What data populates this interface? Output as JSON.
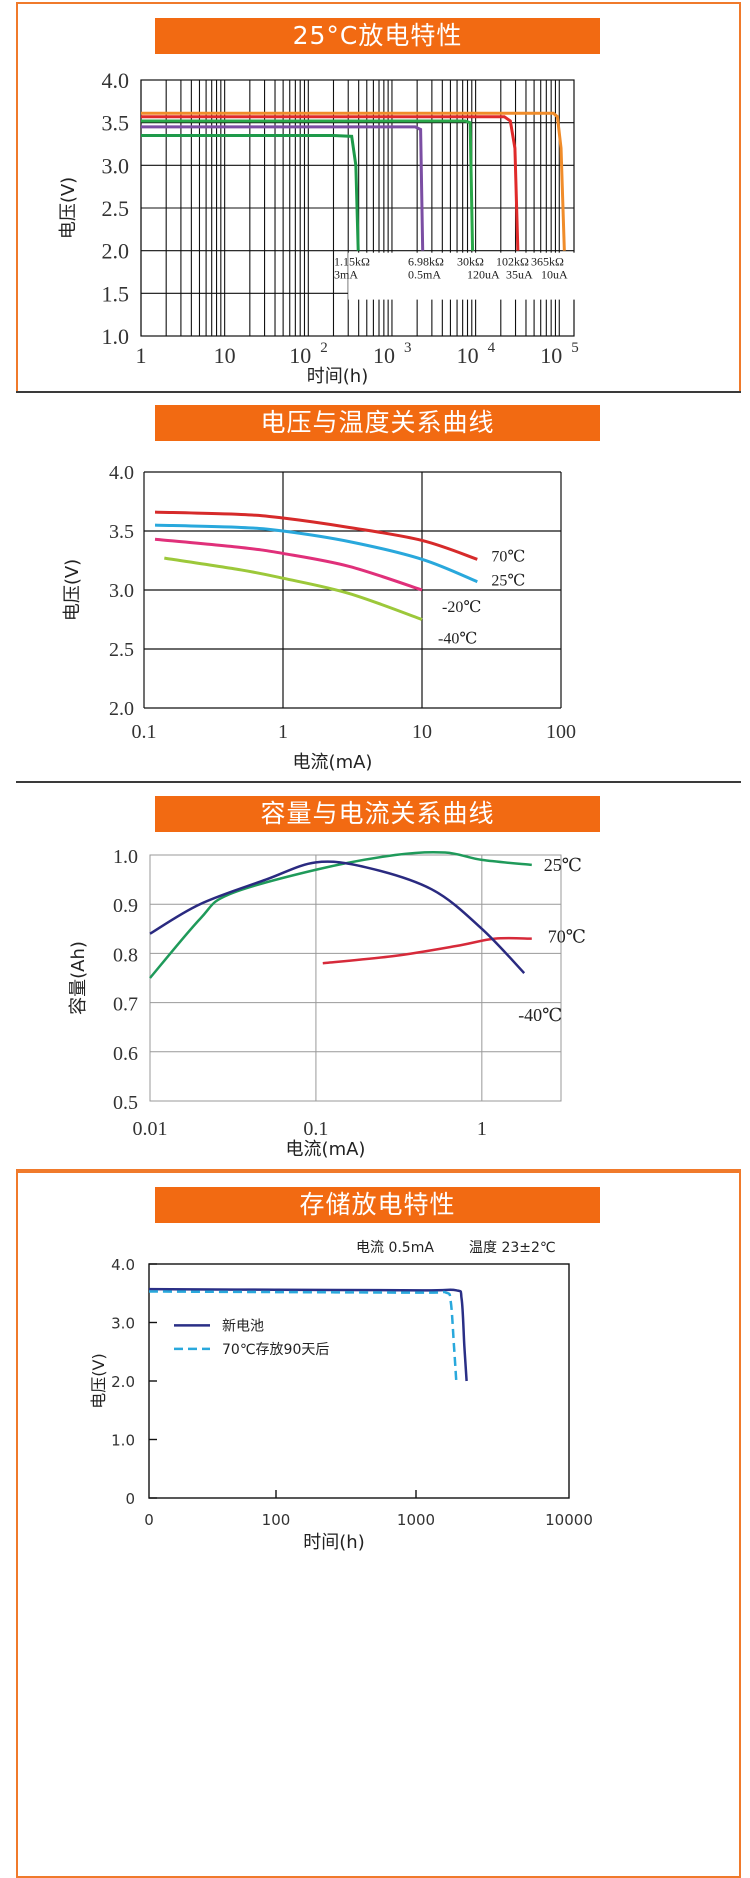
{
  "chart_data": [
    {
      "type": "line",
      "title": "25°C放电特性",
      "xlabel": "时间(h)",
      "ylabel": "电压(V)",
      "x_scale": "log",
      "xlim": [
        1,
        150000
      ],
      "ylim": [
        1.0,
        4.0
      ],
      "y_ticks": [
        "4.0",
        "3.5",
        "3.0",
        "2.5",
        "2.0",
        "1.5",
        "1.0"
      ],
      "x_ticks": [
        {
          "x": 1,
          "base": "1",
          "exp": ""
        },
        {
          "x": 10,
          "base": "10",
          "exp": ""
        },
        {
          "x": 100,
          "base": "10",
          "exp": "2"
        },
        {
          "x": 1000,
          "base": "10",
          "exp": "3"
        },
        {
          "x": 10000,
          "base": "10",
          "exp": "4"
        },
        {
          "x": 100000,
          "base": "10",
          "exp": "5"
        }
      ],
      "grid": true,
      "series": [
        {
          "name": "1.15kΩ",
          "current": "3mA",
          "color": "#1e9a4a",
          "x": [
            1,
            200,
            330,
            370,
            395
          ],
          "y": [
            3.35,
            3.35,
            3.34,
            3.0,
            2.0
          ]
        },
        {
          "name": "6.98kΩ",
          "current": "0.5mA",
          "color": "#7b4ea3",
          "x": [
            1,
            1900,
            2200,
            2330
          ],
          "y": [
            3.45,
            3.45,
            3.42,
            2.0
          ]
        },
        {
          "name": "30kΩ",
          "current": "120uA",
          "color": "#2aa84a",
          "x": [
            1,
            7500,
            8600,
            9200
          ],
          "y": [
            3.52,
            3.52,
            3.5,
            2.0
          ]
        },
        {
          "name": "102kΩ",
          "current": "35uA",
          "color": "#e02a2a",
          "x": [
            1,
            22000,
            26000,
            29500,
            32000
          ],
          "y": [
            3.57,
            3.57,
            3.52,
            3.2,
            2.0
          ]
        },
        {
          "name": "365kΩ",
          "current": "10uA",
          "color": "#f08c2a",
          "x": [
            1,
            85000,
            95000,
            105000,
            115000
          ],
          "y": [
            3.61,
            3.61,
            3.57,
            3.2,
            2.0
          ]
        }
      ],
      "labels": [
        {
          "r": "1.15kΩ",
          "i": "3mA"
        },
        {
          "r": "6.98kΩ",
          "i": "0.5mA"
        },
        {
          "r": "30kΩ",
          "i": "120uA"
        },
        {
          "r": "102kΩ",
          "i": "35uA"
        },
        {
          "r": "365kΩ",
          "i": "10uA"
        }
      ]
    },
    {
      "type": "line",
      "title": "电压与温度关系曲线",
      "xlabel": "电流(mA)",
      "ylabel": "电压(V)",
      "x_scale": "log",
      "xlim": [
        0.1,
        100
      ],
      "ylim": [
        2.0,
        4.0
      ],
      "x_ticks": [
        "0.1",
        "1",
        "10",
        "100"
      ],
      "y_ticks": [
        "4.0",
        "3.5",
        "3.0",
        "2.5",
        "2.0"
      ],
      "grid": true,
      "series": [
        {
          "name": "70℃",
          "color": "#d62a2a",
          "x": [
            0.12,
            0.5,
            1,
            3,
            10,
            25
          ],
          "y": [
            3.66,
            3.64,
            3.61,
            3.53,
            3.42,
            3.26
          ]
        },
        {
          "name": "25℃",
          "color": "#29a8dc",
          "x": [
            0.12,
            0.5,
            1,
            3,
            10,
            25
          ],
          "y": [
            3.55,
            3.53,
            3.5,
            3.41,
            3.26,
            3.07
          ]
        },
        {
          "name": "-20℃",
          "color": "#e0307a",
          "x": [
            0.12,
            0.5,
            1,
            3,
            10
          ],
          "y": [
            3.43,
            3.36,
            3.31,
            3.2,
            3.0
          ]
        },
        {
          "name": "-40℃",
          "color": "#9cc83a",
          "x": [
            0.14,
            0.5,
            1,
            3,
            10
          ],
          "y": [
            3.27,
            3.17,
            3.1,
            2.97,
            2.75
          ]
        }
      ]
    },
    {
      "type": "line",
      "title": "容量与电流关系曲线",
      "xlabel": "电流(mA)",
      "ylabel": "容量(Ah)",
      "x_scale": "log",
      "xlim": [
        0.01,
        3
      ],
      "ylim": [
        0.5,
        1.0
      ],
      "x_ticks": [
        "0.01",
        "0.1",
        "1"
      ],
      "y_ticks": [
        "1.0",
        "0.9",
        "0.8",
        "0.7",
        "0.6",
        "0.5"
      ],
      "grid": "horizontal",
      "series": [
        {
          "name": "25℃",
          "color": "#1f9a5a",
          "x": [
            0.01,
            0.02,
            0.03,
            0.1,
            0.3,
            0.6,
            1,
            2
          ],
          "y": [
            0.75,
            0.87,
            0.92,
            0.97,
            1.0,
            1.005,
            0.99,
            0.98
          ]
        },
        {
          "name": "70℃",
          "color": "#d62a3a",
          "x": [
            0.11,
            0.3,
            0.7,
            1.2,
            2
          ],
          "y": [
            0.78,
            0.795,
            0.815,
            0.83,
            0.83
          ]
        },
        {
          "name": "-40℃",
          "color": "#2a2a80",
          "x": [
            0.01,
            0.02,
            0.05,
            0.1,
            0.2,
            0.5,
            1,
            1.8
          ],
          "y": [
            0.84,
            0.9,
            0.95,
            0.985,
            0.975,
            0.93,
            0.85,
            0.76
          ]
        }
      ]
    },
    {
      "type": "line",
      "title": "存储放电特性",
      "xlabel": "时间(h)",
      "ylabel": "电压(V)",
      "x_scale": "log",
      "xlim": [
        0,
        10000
      ],
      "ylim": [
        0,
        4.0
      ],
      "x_ticks": [
        "0",
        "100",
        "1000",
        "10000"
      ],
      "y_ticks": [
        "4.0",
        "3.0",
        "2.0",
        "1.0",
        "0"
      ],
      "grid": false,
      "annotation_current": "电流 0.5mA",
      "annotation_temp": "温度 23±2℃",
      "series": [
        {
          "name": "新电池",
          "color": "#2a2f86",
          "style": "solid",
          "x": [
            1,
            100,
            1000,
            1700,
            1850,
            1930,
            2000
          ],
          "y": [
            3.57,
            3.56,
            3.55,
            3.55,
            3.4,
            2.6,
            2.0
          ]
        },
        {
          "name": "70℃存放90天后",
          "color": "#29a8dc",
          "style": "dashed",
          "x": [
            1,
            100,
            1000,
            1450,
            1560,
            1640,
            1700
          ],
          "y": [
            3.53,
            3.52,
            3.51,
            3.51,
            3.35,
            2.6,
            2.0
          ]
        }
      ]
    }
  ]
}
